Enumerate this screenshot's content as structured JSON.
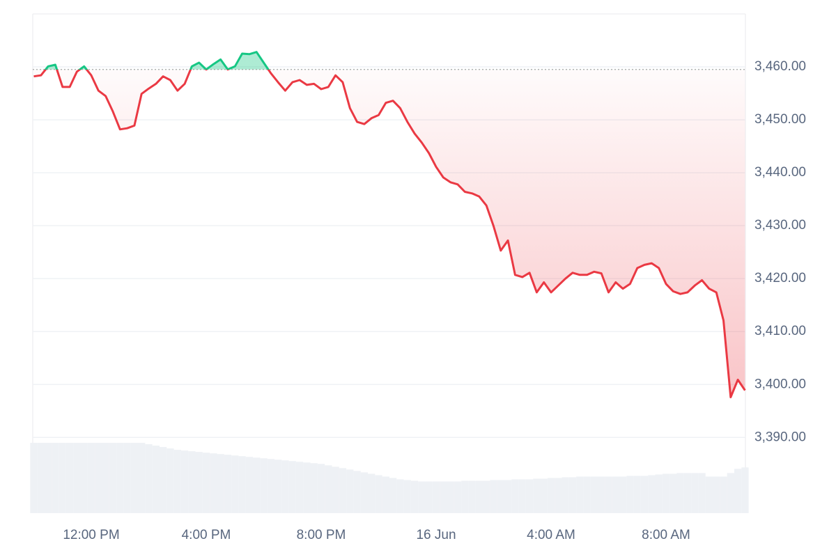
{
  "chart_data": {
    "type": "line",
    "categories": [
      null,
      null,
      null,
      null,
      null,
      null,
      null,
      null,
      "12:00 PM",
      null,
      null,
      null,
      null,
      null,
      null,
      null,
      null,
      null,
      null,
      null,
      null,
      null,
      null,
      null,
      "4:00 PM",
      null,
      null,
      null,
      null,
      null,
      null,
      null,
      null,
      null,
      null,
      null,
      null,
      null,
      null,
      null,
      "8:00 PM",
      null,
      null,
      null,
      null,
      null,
      null,
      null,
      null,
      null,
      null,
      null,
      null,
      null,
      null,
      null,
      "16 Jun",
      null,
      null,
      null,
      null,
      null,
      null,
      null,
      null,
      null,
      null,
      null,
      null,
      null,
      null,
      null,
      "4:00 AM",
      null,
      null,
      null,
      null,
      null,
      null,
      null,
      null,
      null,
      null,
      null,
      null,
      null,
      null,
      null,
      "8:00 AM",
      null,
      null,
      null,
      null,
      null,
      null,
      null,
      null,
      null,
      null,
      null
    ],
    "values": [
      3458.2,
      3458.4,
      3460.1,
      3460.4,
      3456.2,
      3456.2,
      3459.1,
      3460.1,
      3458.4,
      3455.5,
      3454.5,
      3451.6,
      3448.2,
      3448.4,
      3448.9,
      3454.9,
      3455.9,
      3456.8,
      3458.2,
      3457.5,
      3455.5,
      3456.8,
      3460.1,
      3460.8,
      3459.5,
      3460.5,
      3461.4,
      3459.5,
      3460.1,
      3462.5,
      3462.4,
      3462.8,
      3460.8,
      3458.8,
      3457.1,
      3455.5,
      3457.1,
      3457.5,
      3456.6,
      3456.8,
      3455.8,
      3456.2,
      3458.4,
      3457.1,
      3452.2,
      3449.6,
      3449.2,
      3450.3,
      3450.9,
      3453.2,
      3453.6,
      3452.2,
      3449.6,
      3447.4,
      3445.7,
      3443.7,
      3441.1,
      3439.1,
      3438.2,
      3437.8,
      3436.4,
      3436.1,
      3435.5,
      3433.8,
      3429.9,
      3425.3,
      3427.2,
      3420.7,
      3420.3,
      3421.1,
      3417.4,
      3419.3,
      3417.4,
      3418.7,
      3420,
      3421.1,
      3420.7,
      3420.7,
      3421.3,
      3421,
      3417.4,
      3419.3,
      3418.1,
      3419,
      3422,
      3422.6,
      3422.9,
      3422,
      3419,
      3417.6,
      3417.1,
      3417.4,
      3418.7,
      3419.7,
      3418.1,
      3417.4,
      3412.1,
      3397.6,
      3400.9,
      3398.9
    ],
    "volume": [
      100,
      100,
      100,
      100,
      100,
      100,
      100,
      100,
      100,
      100,
      100,
      100,
      100,
      100,
      100,
      100,
      98,
      96,
      94,
      92,
      90,
      89,
      88,
      87,
      86,
      85,
      84,
      83,
      82,
      81,
      80,
      79,
      78,
      77,
      76,
      75,
      74,
      73,
      72,
      71,
      70,
      68,
      66,
      64,
      62,
      60,
      58,
      56,
      54,
      52,
      50,
      48,
      47,
      46,
      45,
      45,
      45,
      45,
      45,
      45,
      46,
      46,
      46,
      46,
      47,
      47,
      47,
      48,
      48,
      48,
      49,
      49,
      50,
      50,
      51,
      51,
      52,
      52,
      52,
      52,
      52,
      52,
      52,
      53,
      53,
      53,
      54,
      55,
      56,
      56,
      57,
      57,
      57,
      57,
      52,
      52,
      52,
      57,
      63,
      65
    ],
    "baseline": 3459.5,
    "up_color": "#16c784",
    "down_color": "#ea3943",
    "volume_color": "#eef1f5",
    "ylim": [
      3375.7,
      3470
    ],
    "yticks": [
      {
        "value": 3390,
        "label": "3,390.00"
      },
      {
        "value": 3400,
        "label": "3,400.00"
      },
      {
        "value": 3410,
        "label": "3,410.00"
      },
      {
        "value": 3420,
        "label": "3,420.00"
      },
      {
        "value": 3430,
        "label": "3,430.00"
      },
      {
        "value": 3440,
        "label": "3,440.00"
      },
      {
        "value": 3450,
        "label": "3,450.00"
      },
      {
        "value": 3460,
        "label": "3,460.00"
      }
    ],
    "grid": true
  }
}
